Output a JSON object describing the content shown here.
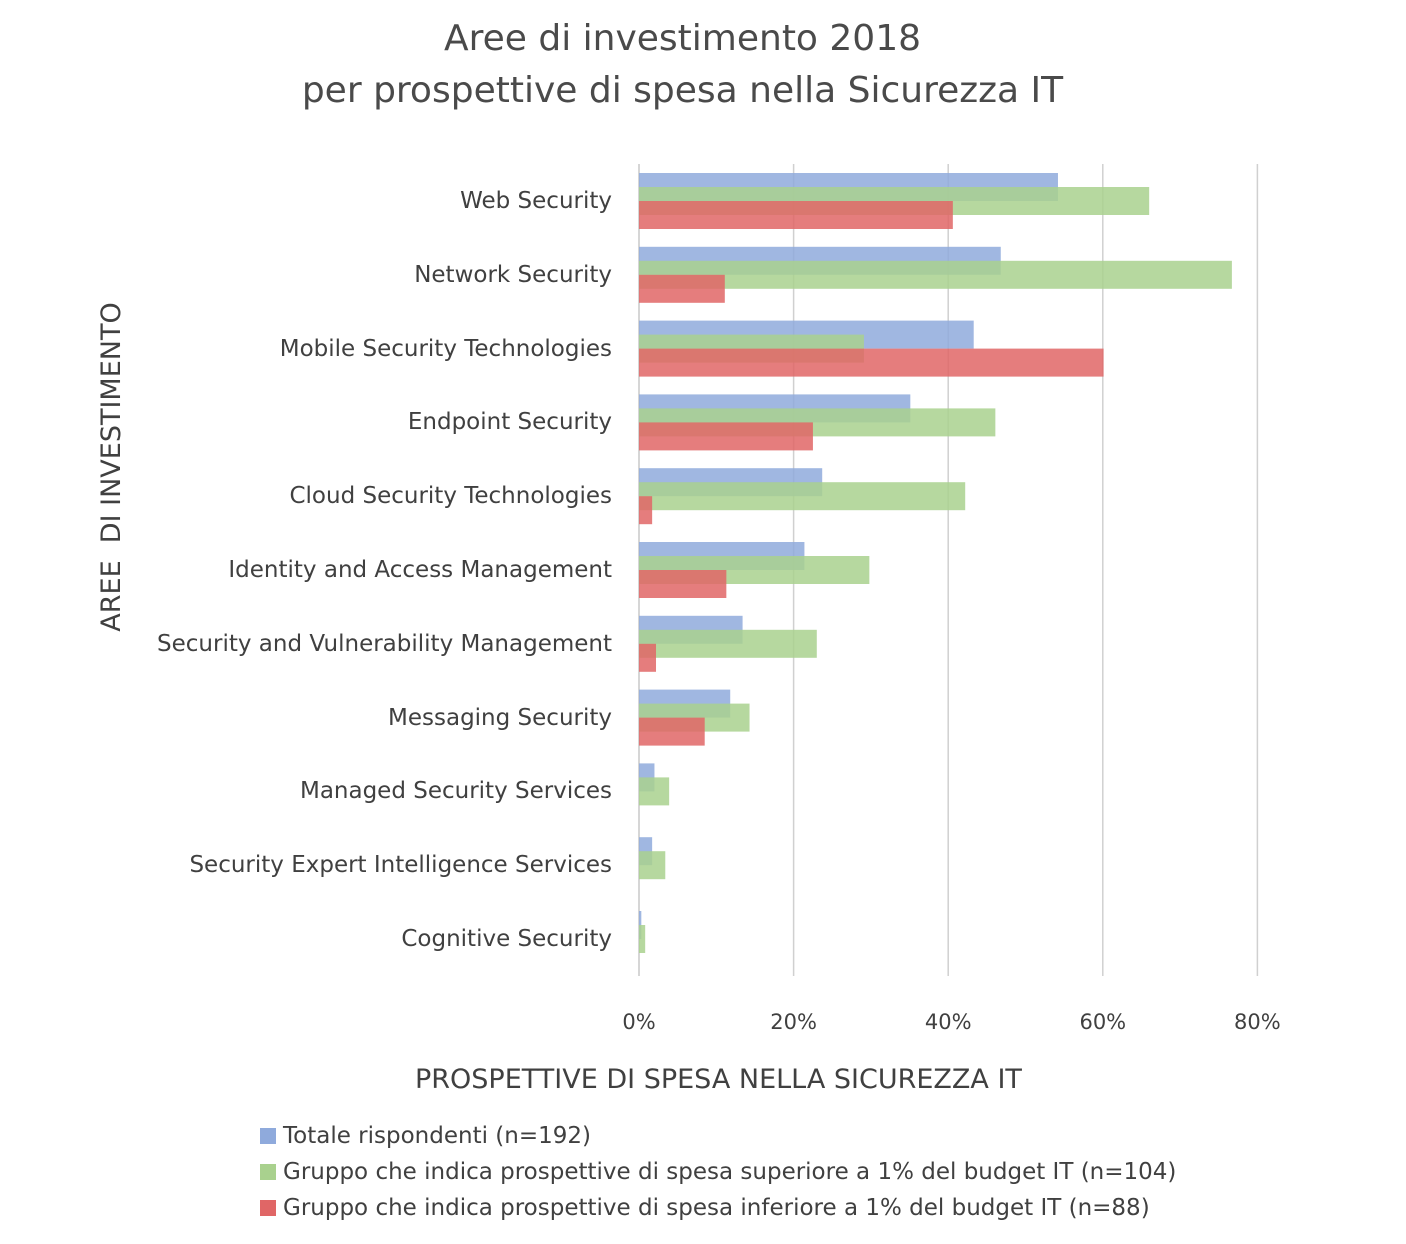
{
  "chart_data": {
    "type": "bar",
    "orientation": "horizontal",
    "title": [
      "Aree di investimento 2018",
      "per prospettive di spesa nella Sicurezza IT"
    ],
    "xlabel": "PROSPETTIVE DI SPESA NELLA SICUREZZA IT",
    "ylabel": "AREE  DI INVESTIMENTO",
    "xlim": [
      0,
      80
    ],
    "xticks": [
      "0%",
      "20%",
      "40%",
      "60%",
      "80%"
    ],
    "grid": true,
    "legend_position": "bottom",
    "categories": [
      "Web Security",
      "Network Security",
      "Mobile Security Technologies",
      "Endpoint Security",
      "Cloud Security Technologies",
      "Identity and Access Management",
      "Security and Vulnerability Management",
      "Messaging Security",
      "Managed Security Services",
      "Security Expert Intelligence Services",
      "Cognitive Security"
    ],
    "series": [
      {
        "name": "Totale rispondenti (n=192)",
        "color": "#8faadc",
        "values": [
          54.2,
          46.8,
          43.3,
          35.1,
          23.7,
          21.4,
          13.4,
          11.8,
          2.0,
          1.7,
          0.3
        ]
      },
      {
        "name": "Gruppo che indica prospettive di spesa superiore a 1% del budget IT (n=104)",
        "color": "#a9d18e",
        "values": [
          66.0,
          76.7,
          29.1,
          46.1,
          42.2,
          29.8,
          23.0,
          14.3,
          3.9,
          3.4,
          0.8
        ]
      },
      {
        "name": "Gruppo che indica prospettive di spesa inferiore a 1% del budget IT (n=88)",
        "color": "#e06666",
        "values": [
          40.6,
          11.1,
          60.1,
          22.5,
          1.7,
          11.3,
          2.2,
          8.5,
          0,
          0,
          0
        ]
      }
    ]
  }
}
